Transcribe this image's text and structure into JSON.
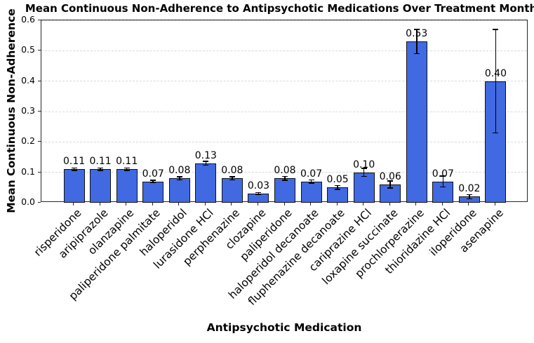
{
  "chart_data": {
    "type": "bar",
    "title": "Mean Continuous Non-Adherence to Antipsychotic Medications Over Treatment Months",
    "xlabel": "Antipsychotic Medication",
    "ylabel": "Mean Continuous Non-Adherence",
    "categories": [
      "risperidone",
      "aripiprazole",
      "olanzapine",
      "paliperidone palmitate",
      "haloperidol",
      "lurasidone HCl",
      "perphenazine",
      "clozapine",
      "paliperidone",
      "haloperidol decanoate",
      "fluphenazine decanoate",
      "cariprazine HCl",
      "loxapine succinate",
      "prochlorperazine",
      "thioridazine HCl",
      "iloperidone",
      "asenapine"
    ],
    "values": [
      0.11,
      0.11,
      0.11,
      0.07,
      0.08,
      0.13,
      0.08,
      0.03,
      0.08,
      0.07,
      0.05,
      0.1,
      0.06,
      0.53,
      0.07,
      0.02,
      0.4
    ],
    "yerr": [
      0.004,
      0.004,
      0.004,
      0.004,
      0.005,
      0.006,
      0.005,
      0.003,
      0.006,
      0.005,
      0.006,
      0.013,
      0.012,
      0.04,
      0.018,
      0.007,
      0.17
    ],
    "bar_labels": [
      "0.11",
      "0.11",
      "0.11",
      "0.07",
      "0.08",
      "0.13",
      "0.08",
      "0.03",
      "0.08",
      "0.07",
      "0.05",
      "0.10",
      "0.06",
      "0.53",
      "0.07",
      "0.02",
      "0.40"
    ],
    "ylim": [
      0.0,
      0.6
    ],
    "yticks": [
      "0.0",
      "0.1",
      "0.2",
      "0.3",
      "0.4",
      "0.5",
      "0.6"
    ],
    "grid": "horizontal-dashed",
    "legend": "none",
    "bar_color": "#4169e1",
    "bar_edge_color": "#111111",
    "error_color": "#000000",
    "grid_color": "#d9d9d9"
  }
}
